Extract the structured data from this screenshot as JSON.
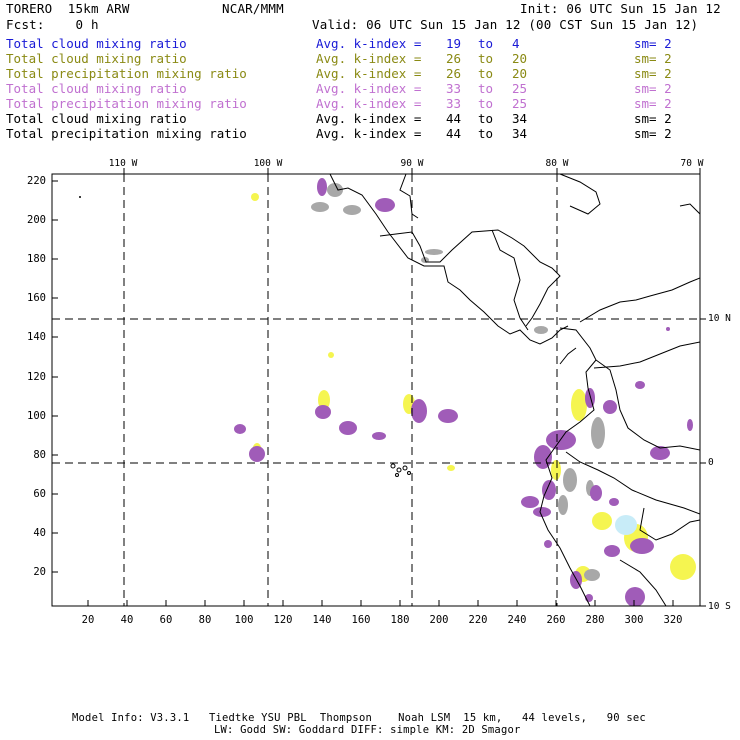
{
  "header": {
    "model": "TORERO  15km ARW",
    "org": "NCAR/MMM",
    "init": "Init: 06 UTC Sun 15 Jan 12",
    "fcst": "Fcst:    0 h",
    "valid": "Valid: 06 UTC Sun 15 Jan 12 (00 CST Sun 15 Jan 12)"
  },
  "legend": {
    "avg_label": "Avg. k-index =",
    "to_label": "to",
    "sm_label": "sm= 2",
    "rows": [
      {
        "label": "Total cloud mixing ratio",
        "from": "19",
        "to": "4",
        "color": "#1a1ad6"
      },
      {
        "label": "Total cloud mixing ratio",
        "from": "26",
        "to": "20",
        "color": "#8a8a14"
      },
      {
        "label": "Total precipitation mixing ratio",
        "from": "26",
        "to": "20",
        "color": "#8a8a14"
      },
      {
        "label": "Total cloud mixing ratio",
        "from": "33",
        "to": "25",
        "color": "#c070d0"
      },
      {
        "label": "Total precipitation mixing ratio",
        "from": "33",
        "to": "25",
        "color": "#c070d0"
      },
      {
        "label": "Total cloud mixing ratio",
        "from": "44",
        "to": "34",
        "color": "#000000"
      },
      {
        "label": "Total precipitation mixing ratio",
        "from": "44",
        "to": "34",
        "color": "#000000"
      }
    ]
  },
  "map": {
    "lon_labels": [
      "110 W",
      "100 W",
      "90 W",
      "80 W",
      "70 W"
    ],
    "lat_labels": [
      "10 N",
      "0",
      "10 S"
    ],
    "y_ticks": [
      "220",
      "200",
      "180",
      "160",
      "140",
      "120",
      "100",
      "80",
      "60",
      "40",
      "20"
    ],
    "x_ticks": [
      "20",
      "40",
      "60",
      "80",
      "100",
      "120",
      "140",
      "160",
      "180",
      "200",
      "220",
      "240",
      "260",
      "280",
      "300",
      "320"
    ],
    "colors": {
      "purple": "#a05cb8",
      "yellow": "#f5f550",
      "gray": "#a8a8a8",
      "lightblue": "#c8ecf8"
    }
  },
  "footer": {
    "line1": "Model Info: V3.3.1   Tiedtke YSU PBL  Thompson    Noah LSM  15 km,   44 levels,   90 sec",
    "line2": "LW: Godd SW: Goddard DIFF: simple KM: 2D Smagor"
  }
}
